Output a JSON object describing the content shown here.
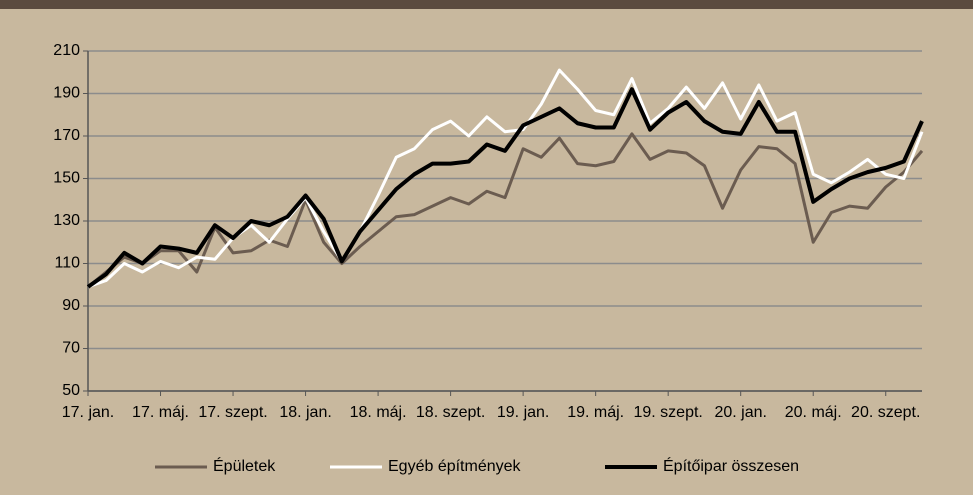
{
  "chart_data": {
    "type": "line",
    "categories": [
      "17. jan.",
      null,
      null,
      null,
      "17. máj.",
      null,
      null,
      null,
      "17. szept.",
      null,
      null,
      null,
      "18. jan.",
      null,
      null,
      null,
      "18. máj.",
      null,
      null,
      null,
      "18. szept.",
      null,
      null,
      null,
      "19. jan.",
      null,
      null,
      null,
      "19. máj.",
      null,
      null,
      null,
      "19. szept.",
      null,
      null,
      null,
      "20. jan.",
      null,
      null,
      null,
      "20. máj.",
      null,
      null,
      null,
      "20. szept.",
      null,
      null
    ],
    "series": [
      {
        "name": "Épületek",
        "color": "#6b5c50",
        "width": 3,
        "values": [
          99,
          106,
          113,
          110,
          116,
          116,
          106,
          127,
          115,
          116,
          121,
          118,
          140,
          120,
          110,
          118,
          125,
          132,
          133,
          137,
          141,
          138,
          144,
          141,
          164,
          160,
          169,
          157,
          156,
          158,
          171,
          159,
          163,
          162,
          156,
          136,
          154,
          165,
          164,
          157,
          120,
          134,
          137,
          136,
          146,
          153,
          163
        ]
      },
      {
        "name": "Egyéb építmények",
        "color": "#ffffff",
        "width": 3,
        "values": [
          99,
          102,
          110,
          106,
          111,
          108,
          113,
          112,
          122,
          128,
          120,
          131,
          141,
          125,
          111,
          125,
          142,
          160,
          164,
          173,
          177,
          170,
          179,
          172,
          173,
          185,
          201,
          192,
          182,
          180,
          197,
          176,
          183,
          193,
          183,
          195,
          178,
          194,
          177,
          181,
          152,
          148,
          153,
          159,
          152,
          150,
          172
        ]
      },
      {
        "name": "Építőipar összesen",
        "color": "#000000",
        "width": 4,
        "values": [
          99,
          105,
          115,
          110,
          118,
          117,
          115,
          128,
          122,
          130,
          128,
          132,
          142,
          131,
          111,
          125,
          135,
          145,
          152,
          157,
          157,
          158,
          166,
          163,
          175,
          179,
          183,
          176,
          174,
          174,
          192,
          173,
          181,
          186,
          177,
          172,
          171,
          186,
          172,
          172,
          139,
          145,
          150,
          153,
          155,
          158,
          177
        ]
      }
    ],
    "ylim": [
      50,
      210
    ],
    "yticks": [
      50,
      70,
      90,
      110,
      130,
      150,
      170,
      190,
      210
    ],
    "grid": true,
    "legend": "bottom"
  }
}
